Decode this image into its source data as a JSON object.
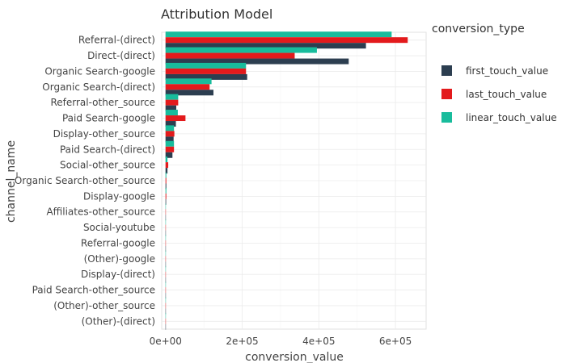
{
  "chart_data": {
    "type": "bar",
    "orientation": "horizontal",
    "title": "Attribution Model",
    "xlabel": "conversion_value",
    "ylabel": "channel_name",
    "xlim": [
      -10000,
      680000
    ],
    "x_ticks": [
      0,
      200000,
      400000,
      600000
    ],
    "x_tick_labels": [
      "0e+00",
      "2e+05",
      "4e+05",
      "6e+05"
    ],
    "grid": true,
    "legend_title": "conversion_type",
    "legend_position": "right",
    "categories": [
      "Referral-(direct)",
      "Direct-(direct)",
      "Organic Search-google",
      "Organic Search-(direct)",
      "Referral-other_source",
      "Paid Search-google",
      "Display-other_source",
      "Paid Search-(direct)",
      "Social-other_source",
      "Organic Search-other_source",
      "Display-google",
      "Affiliates-other_source",
      "Social-youtube",
      "Referral-google",
      "(Other)-google",
      "Display-(direct)",
      "Paid Search-other_source",
      "(Other)-other_source",
      "(Other)-(direct)"
    ],
    "series": [
      {
        "name": "first_touch_value",
        "color": "#2c3e50",
        "values": [
          523000,
          478000,
          213000,
          125000,
          28000,
          27000,
          21000,
          18000,
          5000,
          2000,
          1500,
          800,
          500,
          300,
          0,
          0,
          0,
          0,
          0
        ]
      },
      {
        "name": "last_touch_value",
        "color": "#e31a1c",
        "values": [
          632000,
          337000,
          210000,
          115000,
          33000,
          52000,
          23000,
          22000,
          7000,
          2000,
          2000,
          800,
          500,
          300,
          0,
          0,
          0,
          0,
          0
        ]
      },
      {
        "name": "linear_touch_value",
        "color": "#18bc9c",
        "values": [
          590000,
          395000,
          210000,
          120000,
          33000,
          32000,
          22000,
          22000,
          5000,
          2000,
          2000,
          800,
          500,
          300,
          0,
          0,
          0,
          0,
          0
        ]
      }
    ]
  }
}
